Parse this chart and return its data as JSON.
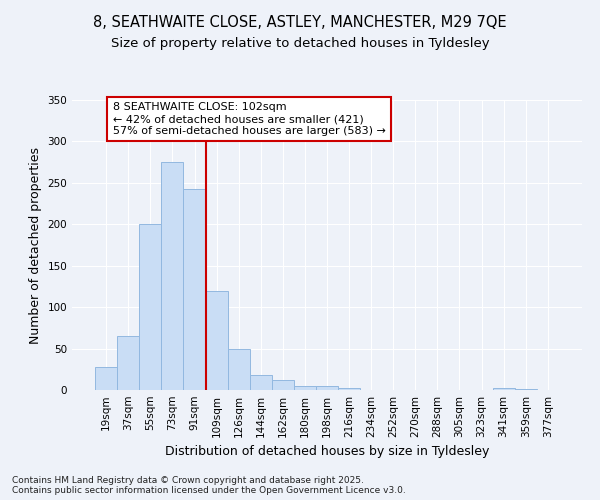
{
  "title_line1": "8, SEATHWAITE CLOSE, ASTLEY, MANCHESTER, M29 7QE",
  "title_line2": "Size of property relative to detached houses in Tyldesley",
  "xlabel": "Distribution of detached houses by size in Tyldesley",
  "ylabel": "Number of detached properties",
  "bin_labels": [
    "19sqm",
    "37sqm",
    "55sqm",
    "73sqm",
    "91sqm",
    "109sqm",
    "126sqm",
    "144sqm",
    "162sqm",
    "180sqm",
    "198sqm",
    "216sqm",
    "234sqm",
    "252sqm",
    "270sqm",
    "288sqm",
    "305sqm",
    "323sqm",
    "341sqm",
    "359sqm",
    "377sqm"
  ],
  "bar_values": [
    28,
    65,
    200,
    275,
    242,
    120,
    50,
    18,
    12,
    5,
    5,
    2,
    0,
    0,
    0,
    0,
    0,
    0,
    3,
    1,
    0
  ],
  "bar_color": "#c9ddf5",
  "bar_edge_color": "#92b8e0",
  "vline_x_index": 5.0,
  "annotation_text_line1": "8 SEATHWAITE CLOSE: 102sqm",
  "annotation_text_line2": "← 42% of detached houses are smaller (421)",
  "annotation_text_line3": "57% of semi-detached houses are larger (583) →",
  "annotation_box_facecolor": "#ffffff",
  "annotation_box_edgecolor": "#cc0000",
  "vline_color": "#cc0000",
  "ylim": [
    0,
    350
  ],
  "yticks": [
    0,
    50,
    100,
    150,
    200,
    250,
    300,
    350
  ],
  "background_color": "#eef2f9",
  "grid_color": "#ffffff",
  "footer_text": "Contains HM Land Registry data © Crown copyright and database right 2025.\nContains public sector information licensed under the Open Government Licence v3.0.",
  "title_fontsize": 10.5,
  "subtitle_fontsize": 9.5,
  "axis_label_fontsize": 9,
  "tick_fontsize": 7.5,
  "annotation_fontsize": 8,
  "footer_fontsize": 6.5
}
